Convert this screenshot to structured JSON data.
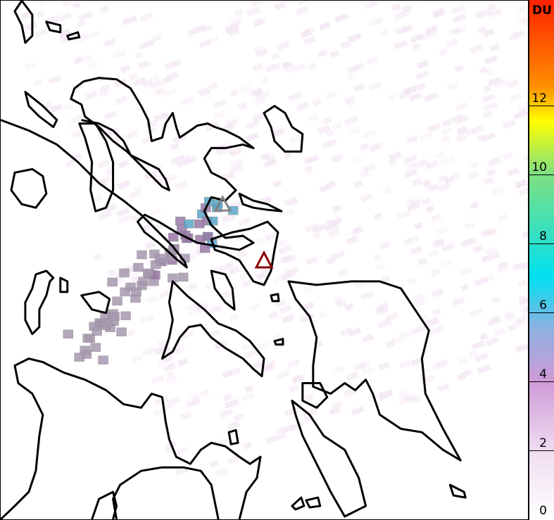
{
  "colorbar": {
    "unit": "DU",
    "ticks": [
      "0",
      "2",
      "4",
      "6",
      "8",
      "10",
      "12"
    ],
    "range": [
      0,
      15
    ],
    "colors": [
      "#ffffff",
      "#efdcf0",
      "#cf9ad8",
      "#8fb0e0",
      "#00e0f0",
      "#80e080",
      "#ffff00",
      "#ff9000",
      "#ff2000"
    ]
  },
  "markers": {
    "grey_triangle_color": "#808080",
    "red_triangle_color": "#8b0000"
  }
}
